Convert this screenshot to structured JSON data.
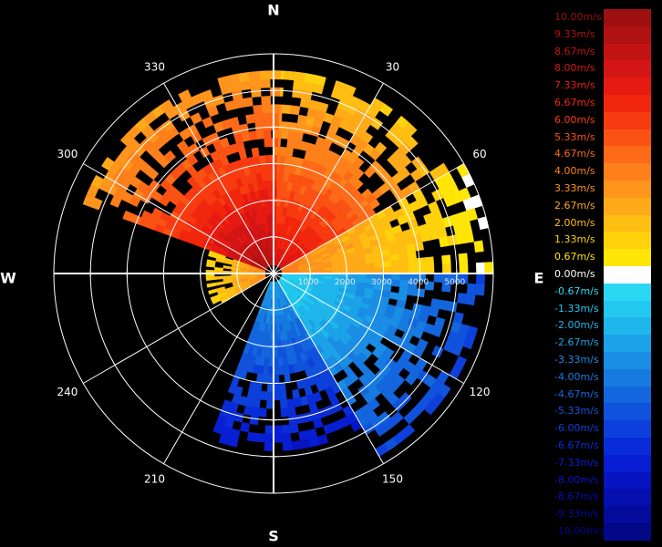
{
  "chart_data": {
    "type": "heatmap",
    "subtype": "polar-doppler-radial-velocity",
    "units": "m/s",
    "compass": {
      "north": "N",
      "south": "S",
      "east": "E",
      "west": "W"
    },
    "angle_labels": [
      "30",
      "60",
      "120",
      "150",
      "210",
      "240",
      "300",
      "330"
    ],
    "range_labels": [
      "1000",
      "2000",
      "3000",
      "4000",
      "5000"
    ],
    "range_max": 5500,
    "rings": 6,
    "spokes_deg": [
      0,
      30,
      60,
      90,
      120,
      150,
      180,
      210,
      240,
      270,
      300,
      330
    ],
    "sectors": [
      {
        "from_deg": 0,
        "to_deg": 60,
        "velocity_range": [
          1.33,
          8.0
        ],
        "max_range": 5000
      },
      {
        "from_deg": 60,
        "to_deg": 90,
        "velocity_range": [
          0.0,
          4.0
        ],
        "max_range": 5400
      },
      {
        "from_deg": 90,
        "to_deg": 150,
        "velocity_range": [
          -6.0,
          -0.67
        ],
        "max_range": 5300
      },
      {
        "from_deg": 150,
        "to_deg": 200,
        "velocity_range": [
          -8.0,
          -2.67
        ],
        "max_range": 4500
      },
      {
        "from_deg": 240,
        "to_deg": 290,
        "velocity_range": [
          0.67,
          4.0
        ],
        "max_range": 1700
      },
      {
        "from_deg": 290,
        "to_deg": 360,
        "velocity_range": [
          2.67,
          9.33
        ],
        "max_range": 5000
      }
    ],
    "colorbar": [
      {
        "label": "10.00m/s",
        "value": 10.0,
        "color": "#9e0f0f"
      },
      {
        "label": "9.33m/s",
        "value": 9.33,
        "color": "#b01111"
      },
      {
        "label": "8.67m/s",
        "value": 8.67,
        "color": "#c21313"
      },
      {
        "label": "8.00m/s",
        "value": 8.0,
        "color": "#d41515"
      },
      {
        "label": "7.33m/s",
        "value": 7.33,
        "color": "#e61a12"
      },
      {
        "label": "6.67m/s",
        "value": 6.67,
        "color": "#f2260d"
      },
      {
        "label": "6.00m/s",
        "value": 6.0,
        "color": "#f83a10"
      },
      {
        "label": "5.33m/s",
        "value": 5.33,
        "color": "#fb5214"
      },
      {
        "label": "4.67m/s",
        "value": 4.67,
        "color": "#fd6a18"
      },
      {
        "label": "4.00m/s",
        "value": 4.0,
        "color": "#fe801a"
      },
      {
        "label": "3.33m/s",
        "value": 3.33,
        "color": "#ff951c"
      },
      {
        "label": "2.67m/s",
        "value": 2.67,
        "color": "#ffaa18"
      },
      {
        "label": "2.00m/s",
        "value": 2.0,
        "color": "#ffbe12"
      },
      {
        "label": "1.33m/s",
        "value": 1.33,
        "color": "#ffd20c"
      },
      {
        "label": "0.67m/s",
        "value": 0.67,
        "color": "#ffe606"
      },
      {
        "label": "0.00m/s",
        "value": 0.0,
        "color": "#ffffff"
      },
      {
        "label": "-0.67m/s",
        "value": -0.67,
        "color": "#2bd8f4"
      },
      {
        "label": "-1.33m/s",
        "value": -1.33,
        "color": "#22c8f0"
      },
      {
        "label": "-2.00m/s",
        "value": -2.0,
        "color": "#1fb6ec"
      },
      {
        "label": "-2.67m/s",
        "value": -2.67,
        "color": "#1ca2e8"
      },
      {
        "label": "-3.33m/s",
        "value": -3.33,
        "color": "#198ee4"
      },
      {
        "label": "-4.00m/s",
        "value": -4.0,
        "color": "#167ae0"
      },
      {
        "label": "-4.67m/s",
        "value": -4.67,
        "color": "#1366de"
      },
      {
        "label": "-5.33m/s",
        "value": -5.33,
        "color": "#1052dc"
      },
      {
        "label": "-6.00m/s",
        "value": -6.0,
        "color": "#0d3fda"
      },
      {
        "label": "-6.67m/s",
        "value": -6.67,
        "color": "#0a2cd8"
      },
      {
        "label": "-7.33m/s",
        "value": -7.33,
        "color": "#081ed2"
      },
      {
        "label": "-8.00m/s",
        "value": -8.0,
        "color": "#0614c2"
      },
      {
        "label": "-8.67m/s",
        "value": -8.67,
        "color": "#050fb0"
      },
      {
        "label": "-9.33m/s",
        "value": -9.33,
        "color": "#040b9c"
      },
      {
        "label": "-10.00m/s",
        "value": -10.0,
        "color": "#030888"
      }
    ]
  }
}
